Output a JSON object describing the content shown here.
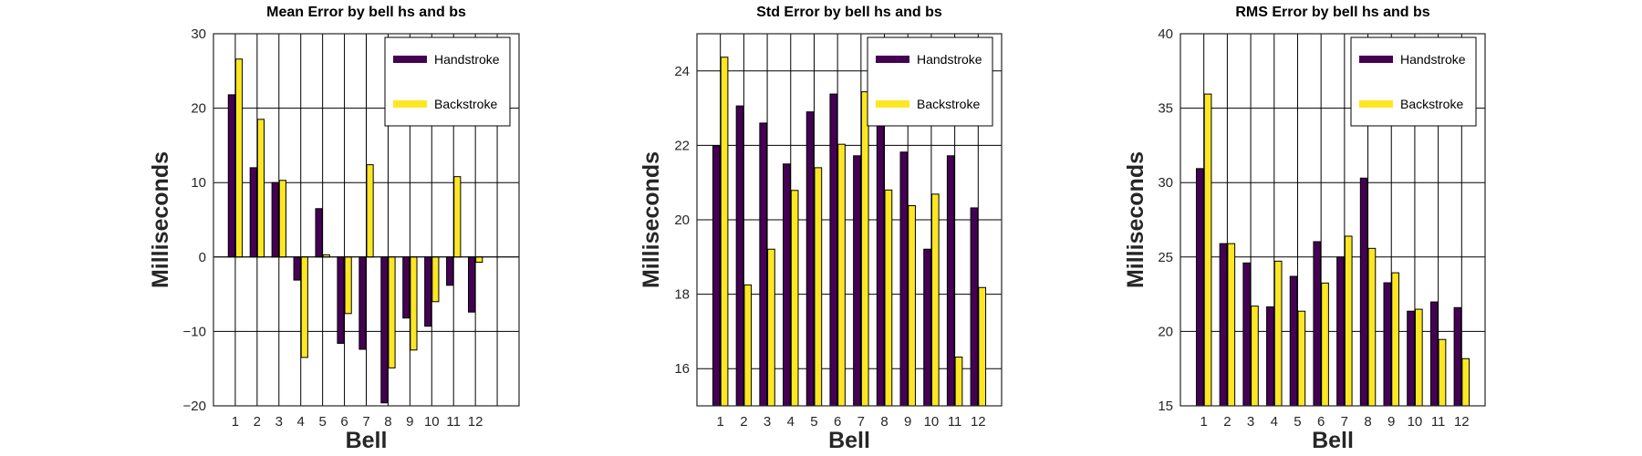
{
  "colors": {
    "handstroke": "#440154",
    "backstroke": "#fde725"
  },
  "chart_data": [
    {
      "type": "bar",
      "title": "Mean Error by bell hs and bs",
      "xlabel": "Bell",
      "ylabel": "Milliseconds",
      "categories": [
        "1",
        "2",
        "3",
        "4",
        "5",
        "6",
        "7",
        "8",
        "9",
        "10",
        "11",
        "12"
      ],
      "xlim": [
        0,
        14
      ],
      "ylim": [
        -20,
        30
      ],
      "yticks": [
        -20,
        -10,
        0,
        10,
        20,
        30
      ],
      "ytick_labels": [
        "−20",
        "−10",
        "0",
        "10",
        "20",
        "30"
      ],
      "grid": true,
      "legend_position": "top-right",
      "series": [
        {
          "name": "Handstroke",
          "values": [
            21.8,
            12.0,
            10.0,
            -3.1,
            6.5,
            -11.6,
            -12.4,
            -19.6,
            -8.2,
            -9.3,
            -3.8,
            -7.4
          ]
        },
        {
          "name": "Backstroke",
          "values": [
            26.6,
            18.5,
            10.3,
            -13.5,
            0.3,
            -7.6,
            12.4,
            -14.9,
            -12.5,
            -6.0,
            10.8,
            -0.7
          ]
        }
      ]
    },
    {
      "type": "bar",
      "title": "Std Error by bell hs and bs",
      "xlabel": "Bell",
      "ylabel": "Milliseconds",
      "categories": [
        "1",
        "2",
        "3",
        "4",
        "5",
        "6",
        "7",
        "8",
        "9",
        "10",
        "11",
        "12"
      ],
      "xlim": [
        0,
        13
      ],
      "ylim": [
        15,
        25
      ],
      "yticks": [
        16,
        18,
        20,
        22,
        24
      ],
      "ytick_labels": [
        "16",
        "18",
        "20",
        "22",
        "24"
      ],
      "grid": true,
      "legend_position": "top-right",
      "series": [
        {
          "name": "Handstroke",
          "values": [
            21.99,
            23.06,
            22.6,
            21.5,
            22.9,
            23.38,
            21.72,
            23.24,
            21.82,
            19.21,
            21.72,
            20.32
          ]
        },
        {
          "name": "Backstroke",
          "values": [
            24.37,
            18.25,
            19.21,
            20.79,
            21.4,
            22.03,
            23.44,
            20.8,
            20.38,
            20.69,
            16.31,
            18.18
          ]
        }
      ]
    },
    {
      "type": "bar",
      "title": "RMS Error by bell hs and bs",
      "xlabel": "Bell",
      "ylabel": "Milliseconds",
      "categories": [
        "1",
        "2",
        "3",
        "4",
        "5",
        "6",
        "7",
        "8",
        "9",
        "10",
        "11",
        "12"
      ],
      "xlim": [
        0,
        13
      ],
      "ylim": [
        15,
        40
      ],
      "yticks": [
        15,
        20,
        25,
        30,
        35,
        40
      ],
      "ytick_labels": [
        "15",
        "20",
        "25",
        "30",
        "35",
        "40"
      ],
      "grid": true,
      "legend_position": "top-right",
      "series": [
        {
          "name": "Handstroke",
          "values": [
            30.94,
            25.9,
            24.6,
            21.65,
            23.7,
            26.03,
            25.0,
            30.3,
            23.27,
            21.36,
            21.98,
            21.6
          ]
        },
        {
          "name": "Backstroke",
          "values": [
            35.95,
            25.9,
            21.7,
            24.72,
            21.36,
            23.25,
            26.4,
            25.58,
            23.94,
            21.49,
            19.46,
            18.17
          ]
        }
      ]
    }
  ]
}
